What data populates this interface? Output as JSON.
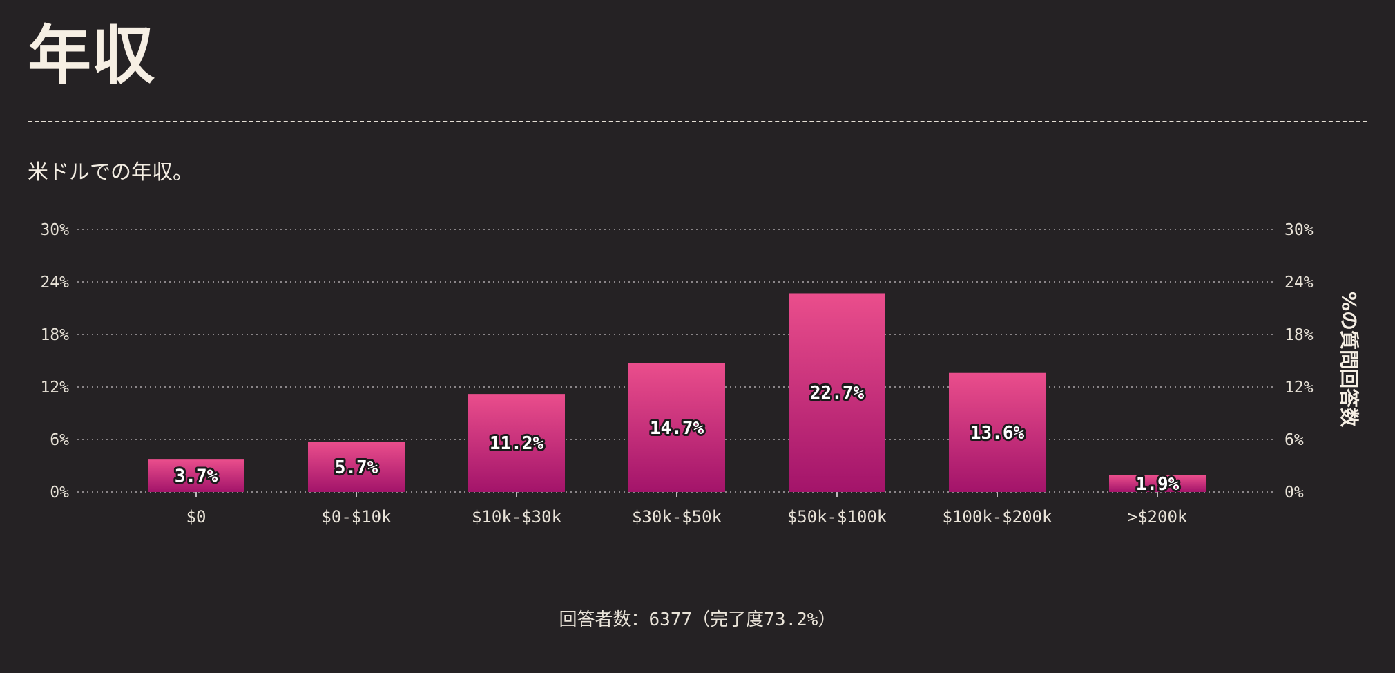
{
  "page": {
    "title": "年収",
    "subtitle": "米ドルでの年収。"
  },
  "footer": {
    "respondents_label": "回答者数：",
    "respondents_count": "6377",
    "completion_open": "（完了度",
    "completion_pct": "73.2%",
    "completion_close": "）"
  },
  "chart_data": {
    "type": "bar",
    "categories": [
      "$0",
      "$0-$10k",
      "$10k-$30k",
      "$30k-$50k",
      "$50k-$100k",
      "$100k-$200k",
      ">$200k"
    ],
    "values": [
      3.7,
      5.7,
      11.2,
      14.7,
      22.7,
      13.6,
      1.9
    ],
    "value_labels": [
      "3.7%",
      "5.7%",
      "11.2%",
      "14.7%",
      "22.7%",
      "13.6%",
      "1.9%"
    ],
    "ylabel_right": "%の質問回答数",
    "ylim": [
      0,
      30
    ],
    "yticks": [
      0,
      6,
      12,
      18,
      24,
      30
    ],
    "ytick_labels": [
      "0%",
      "6%",
      "12%",
      "18%",
      "24%",
      "30%"
    ],
    "grid": true,
    "colors": {
      "bar_top": "#ea4e8c",
      "bar_bottom": "#a3146a",
      "grid": "#8a8588",
      "background": "#252224"
    }
  }
}
